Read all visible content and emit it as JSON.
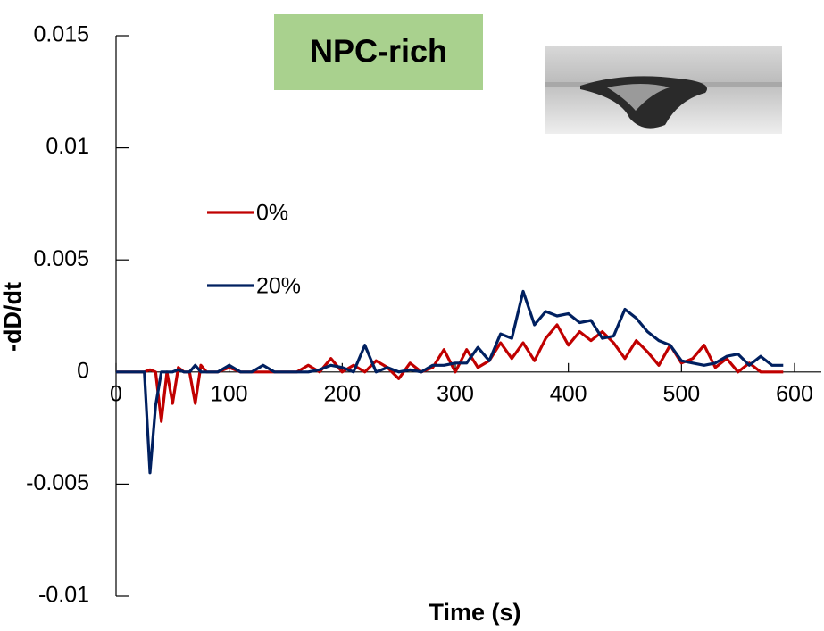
{
  "chart_data": {
    "type": "line",
    "title": "NPC-rich",
    "x_label": "Time (s)",
    "y_label": "-dD/dt",
    "x": [
      0,
      10,
      20,
      25,
      30,
      35,
      40,
      45,
      50,
      55,
      60,
      65,
      70,
      75,
      80,
      90,
      100,
      110,
      120,
      130,
      140,
      150,
      160,
      170,
      180,
      190,
      200,
      210,
      220,
      230,
      240,
      250,
      260,
      270,
      280,
      290,
      300,
      310,
      320,
      330,
      340,
      350,
      360,
      370,
      380,
      390,
      400,
      410,
      420,
      430,
      440,
      450,
      460,
      470,
      480,
      490,
      500,
      510,
      520,
      530,
      540,
      550,
      560,
      570,
      580,
      590
    ],
    "series": [
      {
        "name": "0%",
        "color": "#c00000",
        "values": [
          0,
          0,
          0,
          0,
          0.0001,
          0,
          -0.0022,
          0,
          -0.0014,
          0.0002,
          0,
          0,
          -0.0014,
          0.0003,
          0,
          0,
          0.0002,
          0,
          0,
          0,
          0,
          0,
          0,
          0.0003,
          0,
          0.0006,
          0,
          0.0003,
          0,
          0.0005,
          0.0002,
          -0.0003,
          0.0004,
          0,
          0.0002,
          0.001,
          0,
          0.001,
          0.0002,
          0.0005,
          0.0013,
          0.0006,
          0.0013,
          0.0005,
          0.0015,
          0.0021,
          0.0012,
          0.0018,
          0.0014,
          0.0018,
          0.0013,
          0.0006,
          0.0014,
          0.0009,
          0.0003,
          0.0012,
          0.0004,
          0.0006,
          0.0012,
          0.0002,
          0.0006,
          0,
          0.0004,
          0,
          0,
          0
        ]
      },
      {
        "name": "20%",
        "color": "#002060",
        "values": [
          0,
          0,
          0,
          0,
          -0.0045,
          -0.0015,
          0,
          0,
          0,
          0.0001,
          0,
          0,
          0.0003,
          0,
          0,
          0,
          0.0003,
          0,
          0,
          0.0003,
          0,
          0,
          0,
          0,
          0.0001,
          0.0003,
          0.0002,
          0,
          0.0012,
          0,
          0.0002,
          0,
          0.0001,
          0,
          0.0003,
          0.0003,
          0.0004,
          0.0004,
          0.0011,
          0.0005,
          0.0017,
          0.0015,
          0.0036,
          0.0021,
          0.0027,
          0.0025,
          0.0026,
          0.0022,
          0.0023,
          0.0015,
          0.0016,
          0.0028,
          0.0024,
          0.0018,
          0.0014,
          0.0012,
          0.0005,
          0.0004,
          0.0003,
          0.0004,
          0.0007,
          0.0008,
          0.0003,
          0.0007,
          0.0003,
          0.0003
        ]
      }
    ],
    "xlim": [
      0,
      600
    ],
    "xticks": [
      0,
      100,
      200,
      300,
      400,
      500,
      600
    ],
    "ylim": [
      -0.01,
      0.015
    ],
    "yticks": [
      -0.01,
      -0.005,
      0,
      0.005,
      0.01,
      0.015
    ]
  }
}
